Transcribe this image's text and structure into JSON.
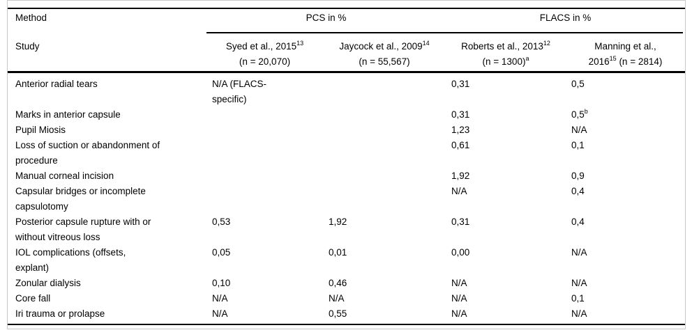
{
  "colors": {
    "background": "#ffffff",
    "rule": "#000000",
    "frame_border": "#c9c9c9",
    "text": "#000000"
  },
  "table": {
    "corner": {
      "method_label": "Method",
      "study_label": "Study"
    },
    "groups": [
      {
        "label": "PCS in %"
      },
      {
        "label": "FLACS in %"
      }
    ],
    "columns": [
      {
        "name": "Syed et al., 2015",
        "ref": "13",
        "n": "(n = 20,070)"
      },
      {
        "name": "Jaycock et al., 2009",
        "ref": "14",
        "n": "(n = 55,567)"
      },
      {
        "name": "Roberts et al., 2013",
        "ref": "12",
        "n": "(n = 1300)",
        "n_sup": "a"
      },
      {
        "name": "Manning et al.,",
        "year": "2016",
        "ref": "15",
        "n": " (n = 2814)"
      }
    ],
    "rows": [
      {
        "method": "Anterior radial tears",
        "cells": [
          {
            "v": "N/A (FLACS-\nspecific)"
          },
          {
            "v": ""
          },
          {
            "v": "0,31"
          },
          {
            "v": "0,5"
          }
        ]
      },
      {
        "method": "Marks in anterior capsule",
        "cells": [
          {
            "v": ""
          },
          {
            "v": ""
          },
          {
            "v": "0,31"
          },
          {
            "v": "0,5",
            "sup": "b"
          }
        ]
      },
      {
        "method": "Pupil Miosis",
        "cells": [
          {
            "v": ""
          },
          {
            "v": ""
          },
          {
            "v": "1,23"
          },
          {
            "v": "N/A"
          }
        ]
      },
      {
        "method": "Loss of suction or abandonment of\nprocedure",
        "cells": [
          {
            "v": ""
          },
          {
            "v": ""
          },
          {
            "v": "0,61"
          },
          {
            "v": "0,1"
          }
        ]
      },
      {
        "method": "Manual corneal incision",
        "cells": [
          {
            "v": ""
          },
          {
            "v": ""
          },
          {
            "v": "1,92"
          },
          {
            "v": "0,9"
          }
        ]
      },
      {
        "method": "Capsular bridges or incomplete\ncapsulotomy",
        "cells": [
          {
            "v": ""
          },
          {
            "v": ""
          },
          {
            "v": "N/A"
          },
          {
            "v": "0,4"
          }
        ]
      },
      {
        "method": "Posterior capsule rupture with or\nwithout vitreous loss",
        "cells": [
          {
            "v": "0,53"
          },
          {
            "v": "1,92"
          },
          {
            "v": "0,31"
          },
          {
            "v": "0,4"
          }
        ]
      },
      {
        "method": "IOL complications (offsets,\nexplant)",
        "cells": [
          {
            "v": "0,05"
          },
          {
            "v": "0,01"
          },
          {
            "v": "0,00"
          },
          {
            "v": "N/A"
          }
        ]
      },
      {
        "method": "Zonular dialysis",
        "cells": [
          {
            "v": "0,10"
          },
          {
            "v": "0,46"
          },
          {
            "v": "N/A"
          },
          {
            "v": "N/A"
          }
        ]
      },
      {
        "method": "Core fall",
        "cells": [
          {
            "v": "N/A"
          },
          {
            "v": "N/A"
          },
          {
            "v": "N/A"
          },
          {
            "v": "0,1"
          }
        ]
      },
      {
        "method": "Iri trauma or prolapse",
        "cells": [
          {
            "v": "N/A"
          },
          {
            "v": "0,55"
          },
          {
            "v": "N/A"
          },
          {
            "v": "N/A"
          }
        ]
      }
    ]
  }
}
